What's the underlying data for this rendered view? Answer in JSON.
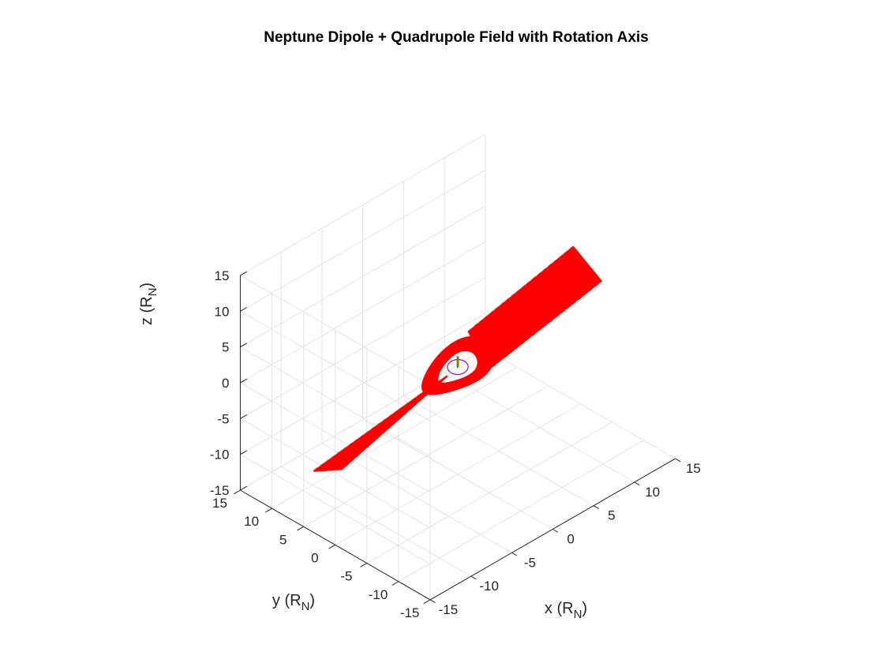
{
  "chart_data": {
    "type": "line",
    "title": "Neptune Dipole + Quadrupole Field with Rotation Axis",
    "xlabel": {
      "base": "x (R",
      "sub": "N",
      "close": ")"
    },
    "ylabel": {
      "base": "y (R",
      "sub": "N",
      "close": ")"
    },
    "zlabel": {
      "base": "z (R",
      "sub": "N",
      "close": ")"
    },
    "xlim": [
      -15,
      15
    ],
    "ylim": [
      -15,
      15
    ],
    "zlim": [
      -15,
      15
    ],
    "xticks": [
      "-15",
      "-10",
      "-5",
      "0",
      "5",
      "10",
      "15"
    ],
    "yticks": [
      "-15",
      "-10",
      "-5",
      "0",
      "5",
      "10",
      "15"
    ],
    "zticks": [
      "-15",
      "-10",
      "-5",
      "0",
      "5",
      "10",
      "15"
    ],
    "view": {
      "azimuth": -37.5,
      "elevation": 30
    },
    "grid": true,
    "box": false,
    "series": [
      {
        "role": "field-lines",
        "color": "#ff0000",
        "line_count": 40,
        "description_points": "Field lines spread along the x-axis reaching x ≈ ±15, z tilted ≈ ±6 to ±10 at the ends, forming loops near the origin (radius ≈ 3)"
      },
      {
        "role": "rotation-axis",
        "color": "#808000",
        "from": [
          0,
          0,
          0
        ],
        "to": [
          0,
          0,
          1.5
        ]
      },
      {
        "role": "magnetic-axis",
        "color": "#0000ff",
        "from": [
          0,
          0,
          0
        ],
        "to": [
          0.6,
          0.9,
          -0.9
        ]
      },
      {
        "role": "planet-surface",
        "color": "#b000b0",
        "radius": 1
      }
    ],
    "colors": {
      "field": "#ff0000",
      "rotation_axis": "#808000",
      "magnetic_axis": "#0000ff",
      "surface": "#b000b0",
      "grid": "#e3e3e3",
      "axis": "#262626"
    }
  }
}
